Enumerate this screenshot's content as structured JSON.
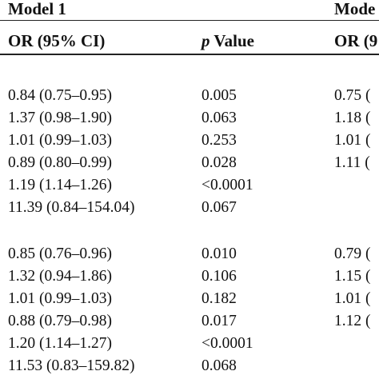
{
  "table": {
    "groups": [
      {
        "label": "Model 1"
      },
      {
        "label": "Mode"
      }
    ],
    "columns": {
      "or_label": "OR (95% CI)",
      "p_symbol": "p",
      "p_label": " Value",
      "or2_label": "OR (9"
    },
    "blocks": [
      {
        "rows": [
          {
            "or": "0.84 (0.75–0.95)",
            "p": "0.005",
            "or2": "0.75 ("
          },
          {
            "or": "1.37 (0.98–1.90)",
            "p": "0.063",
            "or2": "1.18 ("
          },
          {
            "or": "1.01 (0.99–1.03)",
            "p": "0.253",
            "or2": "1.01 ("
          },
          {
            "or": "0.89 (0.80–0.99)",
            "p": "0.028",
            "or2": "1.11 ("
          },
          {
            "or": "1.19 (1.14–1.26)",
            "p": "<0.0001",
            "or2": ""
          },
          {
            "or": "11.39 (0.84–154.04)",
            "p": "0.067",
            "or2": ""
          }
        ]
      },
      {
        "rows": [
          {
            "or": "0.85 (0.76–0.96)",
            "p": "0.010",
            "or2": "0.79 ("
          },
          {
            "or": "1.32 (0.94–1.86)",
            "p": "0.106",
            "or2": "1.15 ("
          },
          {
            "or": "1.01 (0.99–1.03)",
            "p": "0.182",
            "or2": "1.01 ("
          },
          {
            "or": "0.88 (0.79–0.98)",
            "p": "0.017",
            "or2": "1.12 ("
          },
          {
            "or": "1.20 (1.14–1.27)",
            "p": "<0.0001",
            "or2": ""
          },
          {
            "or": "11.53 (0.83–159.82)",
            "p": "0.068",
            "or2": ""
          }
        ]
      }
    ]
  }
}
